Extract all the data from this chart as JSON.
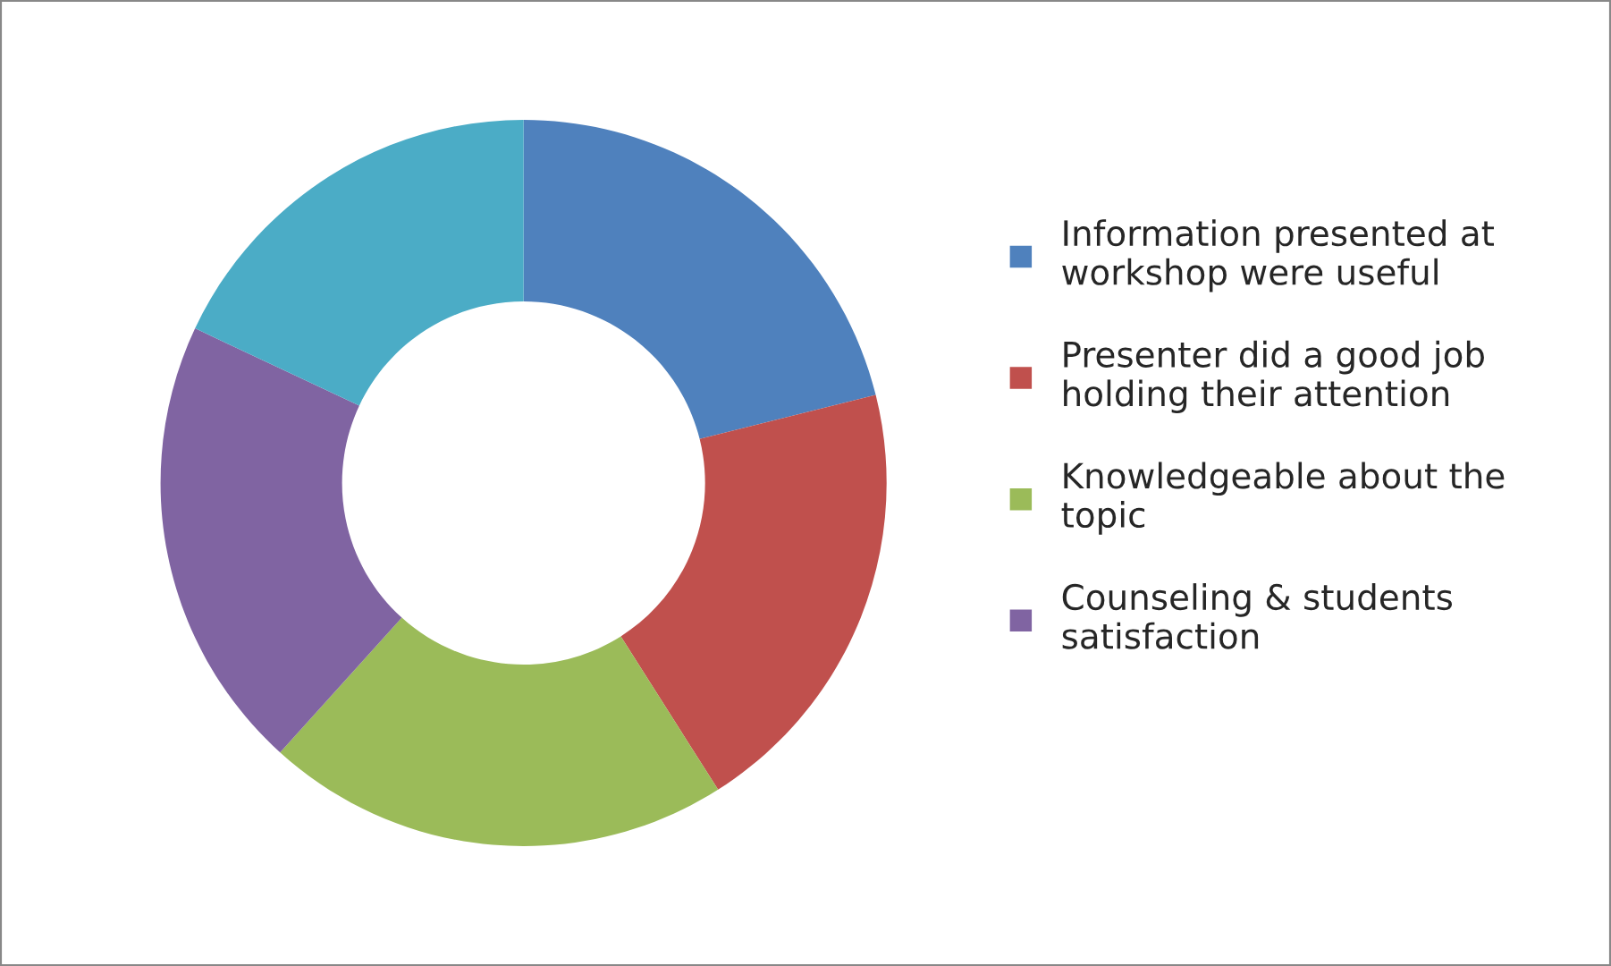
{
  "chart_data": {
    "type": "donut",
    "categories": [
      "Information presented at workshop were useful",
      "Presenter did a good job holding their attention",
      "Knowledgeable about the topic",
      "Counseling & students satisfaction",
      null
    ],
    "values": [
      21.1,
      19.9,
      20.7,
      20.3,
      18.0
    ],
    "colors": [
      "#4f81bd",
      "#c0504d",
      "#9bbb59",
      "#8064a2",
      "#4bacc6"
    ],
    "legend": "right"
  }
}
